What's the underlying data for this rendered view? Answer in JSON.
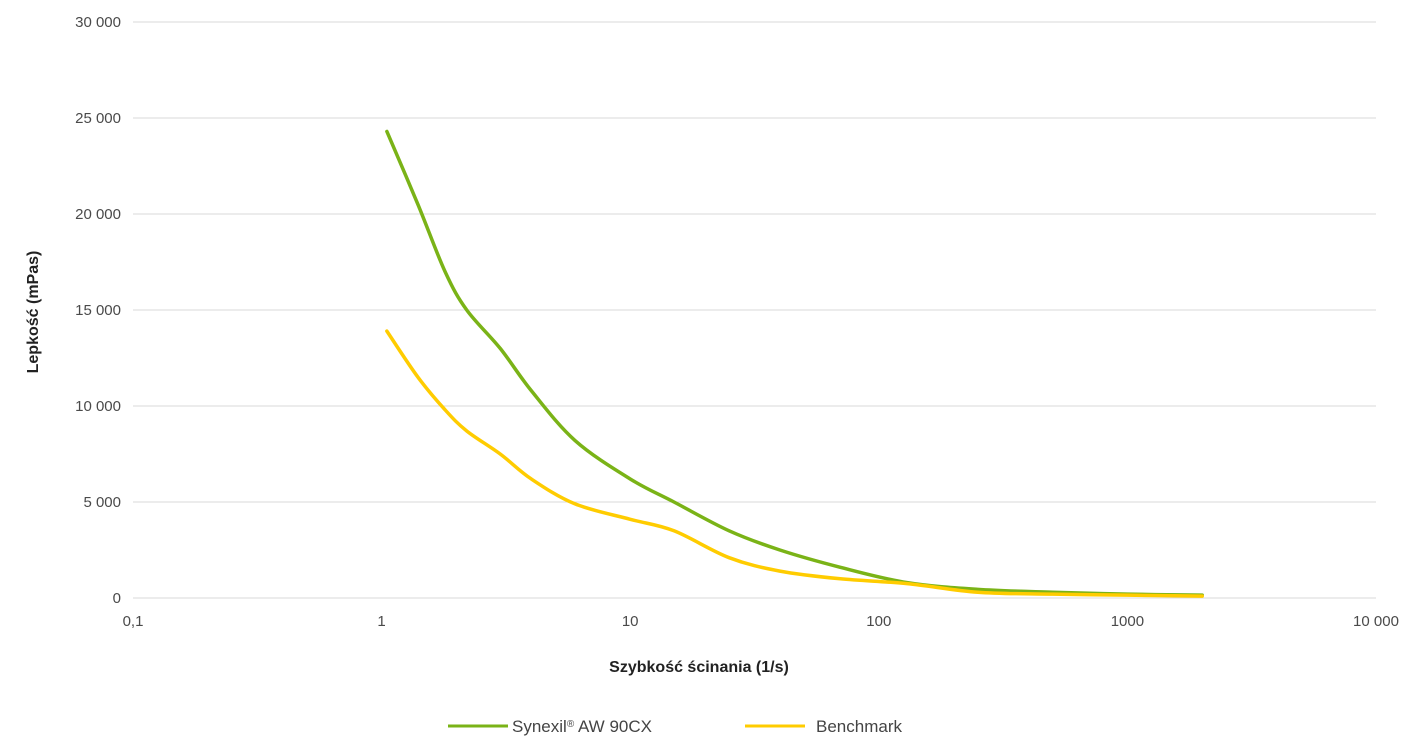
{
  "chart_data": {
    "type": "line",
    "title": "",
    "xlabel": "Szybkość ścinania (1/s)",
    "ylabel": "Lepkość (mPas)",
    "x_scale": "log",
    "xlim": [
      0.1,
      10000
    ],
    "ylim": [
      0,
      30000
    ],
    "grid": "horizontal",
    "legend_position": "bottom",
    "x_tick_labels": [
      "0,1",
      "1",
      "10",
      "100",
      "1000",
      "10 000"
    ],
    "x_ticks": [
      0.1,
      1,
      10,
      100,
      1000,
      10000
    ],
    "y_tick_labels": [
      "0",
      "5 000",
      "10 000",
      "15 000",
      "20 000",
      "25 000",
      "30 000"
    ],
    "y_ticks": [
      0,
      5000,
      10000,
      15000,
      20000,
      25000,
      30000
    ],
    "series": [
      {
        "name": "Synexil® AW 90CX",
        "color": "#7ab317",
        "x": [
          1.05,
          1.4,
          1.8,
          2.2,
          3,
          4,
          6,
          10,
          15,
          25,
          40,
          70,
          130,
          250,
          500,
          1000,
          2000
        ],
        "y": [
          24300,
          20500,
          17000,
          15000,
          13000,
          10800,
          8200,
          6200,
          5000,
          3500,
          2500,
          1600,
          800,
          450,
          300,
          200,
          150
        ]
      },
      {
        "name": "Benchmark",
        "color": "#ffcc00",
        "x": [
          1.05,
          1.4,
          1.8,
          2.2,
          3,
          4,
          6,
          10,
          15,
          25,
          40,
          70,
          130,
          250,
          500,
          1000,
          2000
        ],
        "y": [
          13900,
          11500,
          9800,
          8700,
          7500,
          6200,
          4900,
          4100,
          3500,
          2100,
          1400,
          1000,
          750,
          300,
          200,
          150,
          100
        ]
      }
    ]
  },
  "legend": {
    "series_1_prefix": "Synexil",
    "series_1_mark": "®",
    "series_1_suffix": " AW 90CX",
    "series_2": "Benchmark"
  }
}
